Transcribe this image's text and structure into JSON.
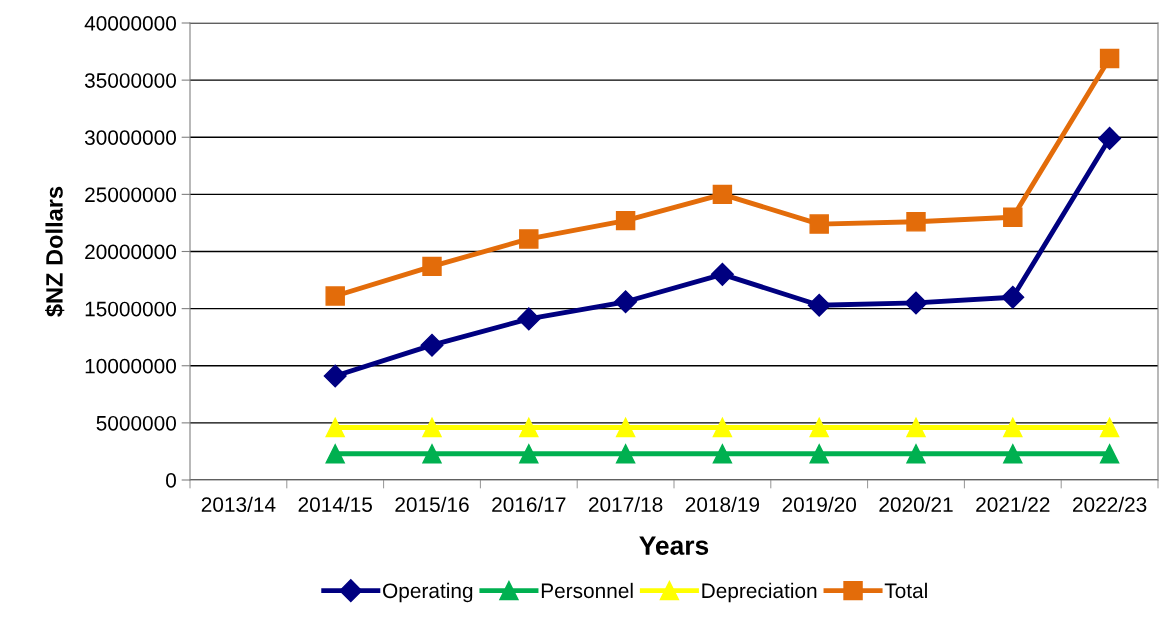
{
  "chart_data": {
    "type": "line",
    "xlabel": "Years",
    "ylabel": "$NZ Dollars",
    "categories": [
      "2013/14",
      "2014/15",
      "2015/16",
      "2016/17",
      "2017/18",
      "2018/19",
      "2019/20",
      "2020/21",
      "2021/22",
      "2022/23"
    ],
    "series": [
      {
        "name": "Operating",
        "color": "#000080",
        "marker": "diamond",
        "values": [
          null,
          9100000,
          11800000,
          14100000,
          15600000,
          18000000,
          15300000,
          15500000,
          16000000,
          29900000
        ]
      },
      {
        "name": "Personnel",
        "color": "#00b050",
        "marker": "triangle",
        "values": [
          null,
          2300000,
          2300000,
          2300000,
          2300000,
          2300000,
          2300000,
          2300000,
          2300000,
          2300000
        ]
      },
      {
        "name": "Depreciation",
        "color": "#ffff00",
        "marker": "triangle",
        "values": [
          null,
          4600000,
          4600000,
          4600000,
          4600000,
          4600000,
          4600000,
          4600000,
          4600000,
          4600000
        ]
      },
      {
        "name": "Total",
        "color": "#e36c0a",
        "marker": "square",
        "values": [
          null,
          16100000,
          18700000,
          21100000,
          22700000,
          25000000,
          22400000,
          22600000,
          23000000,
          36900000
        ]
      }
    ],
    "ylim": [
      0,
      40000000
    ],
    "yticks": [
      0,
      5000000,
      10000000,
      15000000,
      20000000,
      25000000,
      30000000,
      35000000,
      40000000
    ],
    "grid": "y",
    "legend": "bottom",
    "line_style": "solid"
  }
}
